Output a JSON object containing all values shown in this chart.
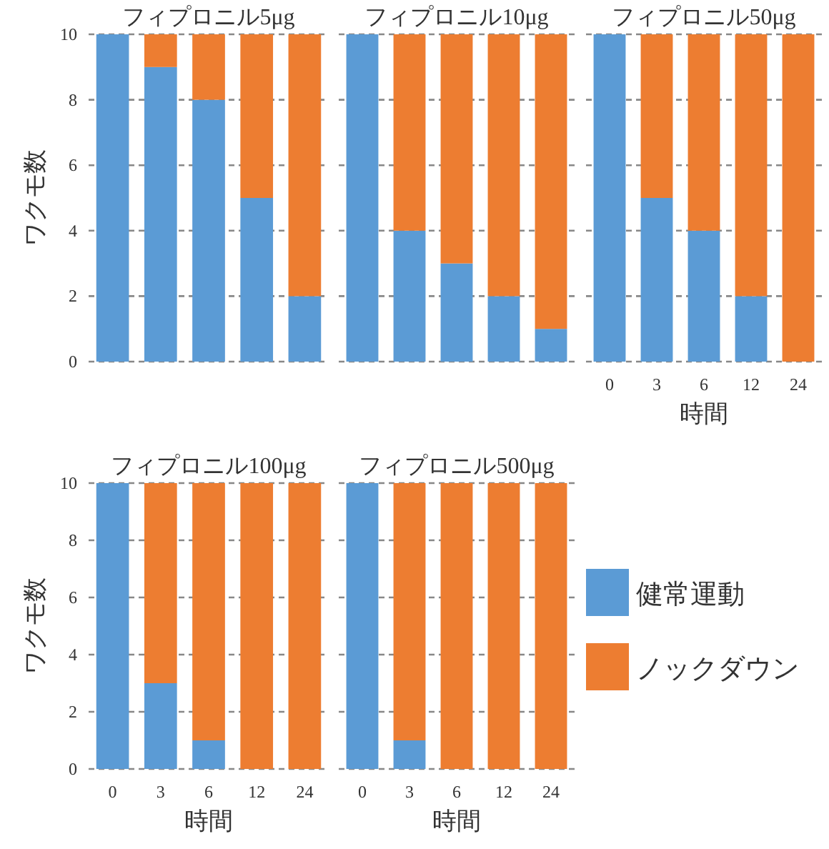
{
  "chart_data": [
    {
      "type": "bar",
      "stacked": true,
      "title": "フィプロニル5μg",
      "ylabel": "ワクモ数",
      "categories": [
        "0",
        "3",
        "6",
        "12",
        "24"
      ],
      "series": [
        {
          "color": "#5b9bd5",
          "values": [
            10,
            9,
            8,
            5,
            2
          ]
        },
        {
          "color": "#ed7d31",
          "values": [
            0,
            1,
            2,
            5,
            8
          ]
        }
      ],
      "ylim": [
        0,
        10
      ],
      "yticks": [
        0,
        2,
        4,
        6,
        8,
        10
      ],
      "grid": "y",
      "tick_labels": "y"
    },
    {
      "type": "bar",
      "stacked": true,
      "title": "フィプロニル10μg",
      "categories": [
        "0",
        "3",
        "6",
        "12",
        "24"
      ],
      "series": [
        {
          "color": "#5b9bd5",
          "values": [
            10,
            4,
            3,
            2,
            1
          ]
        },
        {
          "color": "#ed7d31",
          "values": [
            0,
            6,
            7,
            8,
            9
          ]
        }
      ],
      "ylim": [
        0,
        10
      ],
      "yticks": [
        0,
        2,
        4,
        6,
        8,
        10
      ],
      "grid": "y",
      "tick_labels": false
    },
    {
      "type": "bar",
      "stacked": true,
      "title": "フィプロニル50μg",
      "xlabel": "時間",
      "categories": [
        "0",
        "3",
        "6",
        "12",
        "24"
      ],
      "series": [
        {
          "color": "#5b9bd5",
          "values": [
            10,
            5,
            4,
            2,
            0
          ]
        },
        {
          "color": "#ed7d31",
          "values": [
            0,
            5,
            6,
            8,
            10
          ]
        }
      ],
      "ylim": [
        0,
        10
      ],
      "yticks": [
        0,
        2,
        4,
        6,
        8,
        10
      ],
      "grid": "y",
      "tick_labels": "x"
    },
    {
      "type": "bar",
      "stacked": true,
      "title": "フィプロニル100μg",
      "xlabel": "時間",
      "ylabel": "ワクモ数",
      "categories": [
        "0",
        "3",
        "6",
        "12",
        "24"
      ],
      "series": [
        {
          "color": "#5b9bd5",
          "values": [
            10,
            3,
            1,
            0,
            0
          ]
        },
        {
          "color": "#ed7d31",
          "values": [
            0,
            7,
            9,
            10,
            10
          ]
        }
      ],
      "ylim": [
        0,
        10
      ],
      "yticks": [
        0,
        2,
        4,
        6,
        8,
        10
      ],
      "grid": "y"
    },
    {
      "type": "bar",
      "stacked": true,
      "title": "フィプロニル500μg",
      "xlabel": "時間",
      "categories": [
        "0",
        "3",
        "6",
        "12",
        "24"
      ],
      "series": [
        {
          "name": "健常運動",
          "color": "#5b9bd5",
          "values": [
            10,
            1,
            0,
            0,
            0
          ]
        },
        {
          "name": "ノックダウン",
          "color": "#ed7d31",
          "values": [
            0,
            9,
            10,
            10,
            10
          ]
        }
      ],
      "ylim": [
        0,
        10
      ],
      "yticks": [
        0,
        2,
        4,
        6,
        8,
        10
      ],
      "grid": "y",
      "tick_labels": "x",
      "legend": "right"
    }
  ]
}
